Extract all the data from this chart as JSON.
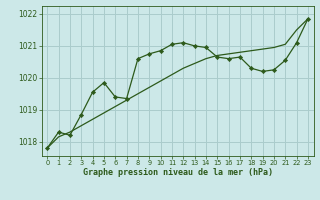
{
  "bg_color": "#cce8e8",
  "grid_color": "#aacccc",
  "line_color": "#2d5a1b",
  "marker_color": "#2d5a1b",
  "xlabel": "Graphe pression niveau de la mer (hPa)",
  "ylim": [
    1017.55,
    1022.25
  ],
  "yticks": [
    1018,
    1019,
    1020,
    1021,
    1022
  ],
  "xlim": [
    -0.5,
    23.5
  ],
  "xticks": [
    0,
    1,
    2,
    3,
    4,
    5,
    6,
    7,
    8,
    9,
    10,
    11,
    12,
    13,
    14,
    15,
    16,
    17,
    18,
    19,
    20,
    21,
    22,
    23
  ],
  "line1_x": [
    0,
    1,
    2,
    3,
    4,
    5,
    6,
    7,
    8,
    9,
    10,
    11,
    12,
    13,
    14,
    15,
    16,
    17,
    18,
    19,
    20,
    21,
    22,
    23
  ],
  "line1_y": [
    1017.8,
    1018.3,
    1018.2,
    1018.85,
    1019.55,
    1019.85,
    1019.4,
    1019.35,
    1020.6,
    1020.75,
    1020.85,
    1021.05,
    1021.1,
    1021.0,
    1020.95,
    1020.65,
    1020.6,
    1020.65,
    1020.3,
    1020.2,
    1020.25,
    1020.55,
    1021.1,
    1021.85
  ],
  "line2_x": [
    0,
    1,
    2,
    3,
    4,
    5,
    6,
    7,
    8,
    9,
    10,
    11,
    12,
    13,
    14,
    15,
    16,
    17,
    18,
    19,
    20,
    21,
    22,
    23
  ],
  "line2_y": [
    1017.8,
    1018.15,
    1018.3,
    1018.5,
    1018.7,
    1018.9,
    1019.1,
    1019.3,
    1019.5,
    1019.7,
    1019.9,
    1020.1,
    1020.3,
    1020.45,
    1020.6,
    1020.7,
    1020.75,
    1020.8,
    1020.85,
    1020.9,
    1020.95,
    1021.05,
    1021.5,
    1021.85
  ]
}
